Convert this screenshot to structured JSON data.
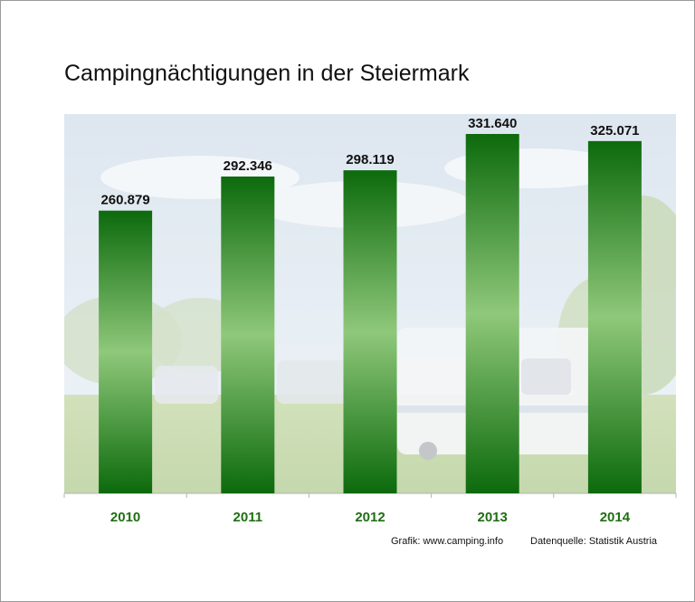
{
  "chart_data": {
    "type": "bar",
    "title": "Campingnächtigungen in der Steiermark",
    "categories": [
      "2010",
      "2011",
      "2012",
      "2013",
      "2014"
    ],
    "values": [
      260879,
      292346,
      298119,
      331640,
      325071
    ],
    "value_labels": [
      "260.879",
      "292.346",
      "298.119",
      "331.640",
      "325.071"
    ],
    "xlabel": "",
    "ylabel": "",
    "ylim": [
      0,
      350000
    ],
    "grid": false,
    "legend": "none"
  },
  "footer": {
    "source_graphic": "Grafik: www.camping.info",
    "source_data": "Datenquelle: Statistik Austria"
  },
  "colors": {
    "bar_dark": "#0c6a0c",
    "bar_light": "#8fc87a",
    "category_label": "#1f6e12",
    "value_label": "#111111"
  }
}
